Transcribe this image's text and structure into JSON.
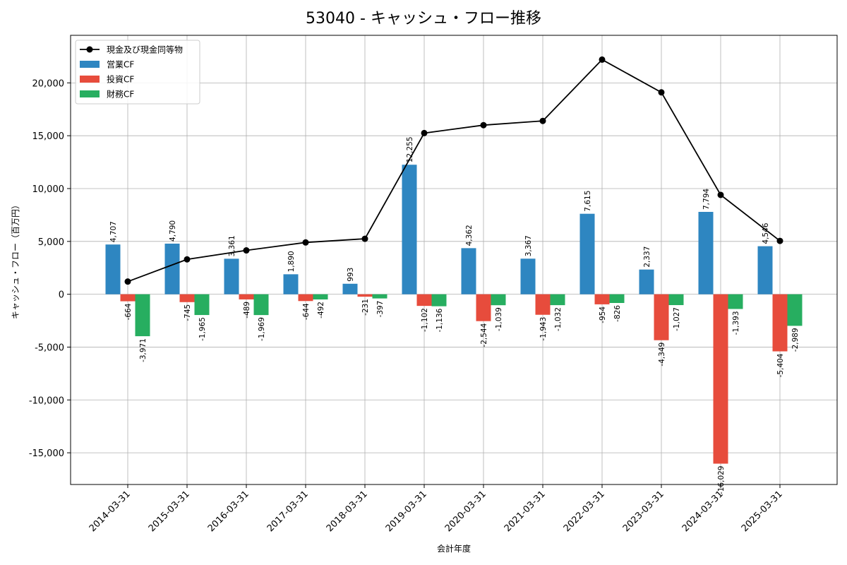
{
  "chart_data": {
    "type": "bar",
    "title": "53040 - キャッシュ・フロー推移",
    "xlabel": "会計年度",
    "ylabel": "キャッシュ・フロー（百万円）",
    "ylim": [
      -18000,
      24500
    ],
    "yticks": [
      -15000,
      -10000,
      -5000,
      0,
      5000,
      10000,
      15000,
      20000
    ],
    "ytick_labels": [
      "-15,000",
      "-10,000",
      "-5,000",
      "0",
      "5,000",
      "10,000",
      "15,000",
      "20,000"
    ],
    "grid": true,
    "legend_position": "top-left",
    "categories": [
      "2014-03-31",
      "2015-03-31",
      "2016-03-31",
      "2017-03-31",
      "2018-03-31",
      "2019-03-31",
      "2020-03-31",
      "2021-03-31",
      "2022-03-31",
      "2023-03-31",
      "2024-03-31",
      "2025-03-31"
    ],
    "series": [
      {
        "name": "営業CF",
        "kind": "bar",
        "color": "#2e86c1",
        "values": [
          4707,
          4790,
          3361,
          1890,
          993,
          12255,
          4362,
          3367,
          7615,
          2337,
          7794,
          4546
        ],
        "labels": [
          "4,707",
          "4,790",
          "3,361",
          "1,890",
          "993",
          "12,255",
          "4,362",
          "3,367",
          "7,615",
          "2,337",
          "7,794",
          "4,546"
        ]
      },
      {
        "name": "投資CF",
        "kind": "bar",
        "color": "#e74c3c",
        "values": [
          -664,
          -745,
          -489,
          -644,
          -231,
          -1102,
          -2544,
          -1943,
          -954,
          -4349,
          -16029,
          -5404
        ],
        "labels": [
          "-664",
          "-745",
          "-489",
          "-644",
          "-231",
          "-1,102",
          "-2,544",
          "-1,943",
          "-954",
          "-4,349",
          "-16,029",
          "-5,404"
        ]
      },
      {
        "name": "財務CF",
        "kind": "bar",
        "color": "#27ae60",
        "values": [
          -3971,
          -1965,
          -1969,
          -492,
          -397,
          -1136,
          -1039,
          -1032,
          -826,
          -1027,
          -1393,
          -2989
        ],
        "labels": [
          "-3,971",
          "-1,965",
          "-1,969",
          "-492",
          "-397",
          "-1,136",
          "-1,039",
          "-1,032",
          "-826",
          "-1,027",
          "-1,393",
          "-2,989"
        ]
      },
      {
        "name": "現金及び現金同等物",
        "kind": "line",
        "color": "#000000",
        "values": [
          1200,
          3300,
          4150,
          4900,
          5250,
          15250,
          16000,
          16400,
          22200,
          19100,
          9400,
          5050
        ]
      }
    ]
  }
}
